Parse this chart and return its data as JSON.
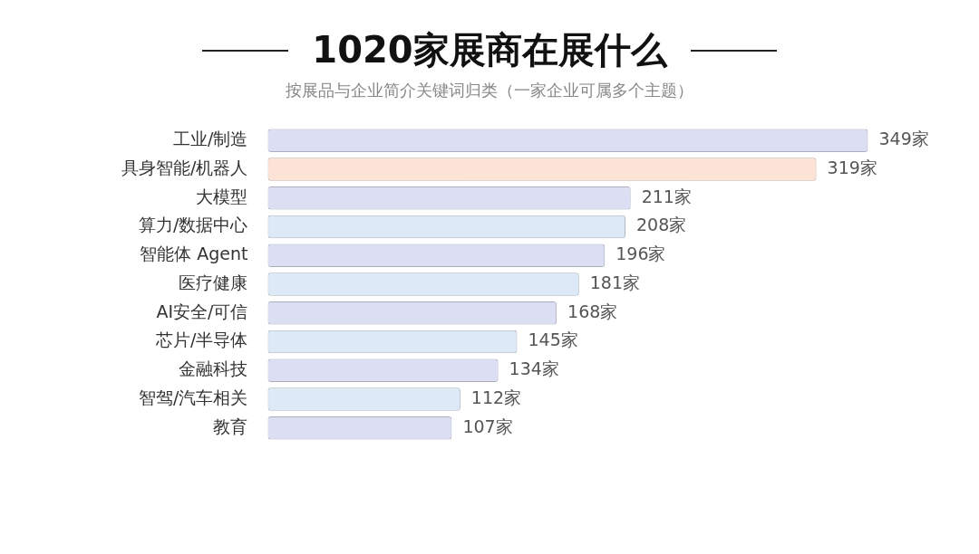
{
  "chart_data": {
    "type": "bar",
    "orientation": "horizontal",
    "title": "1020家展商在展什么",
    "subtitle": "按展品与企业简介关键词归类（一家企业可属多个主题）",
    "categories": [
      "工业/制造",
      "具身智能/机器人",
      "大模型",
      "算力/数据中心",
      "智能体 Agent",
      "医疗健康",
      "AI安全/可信",
      "芯片/半导体",
      "金融科技",
      "智驾/汽车相关",
      "教育"
    ],
    "values": [
      349,
      319,
      211,
      208,
      196,
      181,
      168,
      145,
      134,
      112,
      107
    ],
    "colors": [
      "#dcdff3",
      "#fde3d6",
      "#dcdff3",
      "#dde9f6",
      "#dcdff3",
      "#dde9f6",
      "#dcdff3",
      "#dde9f6",
      "#dcdff3",
      "#dde9f6",
      "#dcdff3"
    ],
    "value_labels": [
      "349家",
      "319家",
      "211家",
      "208家",
      "196家",
      "181家",
      "168家",
      "145家",
      "134家",
      "112家",
      "107家"
    ],
    "tick_labels": "y",
    "legend": false
  }
}
